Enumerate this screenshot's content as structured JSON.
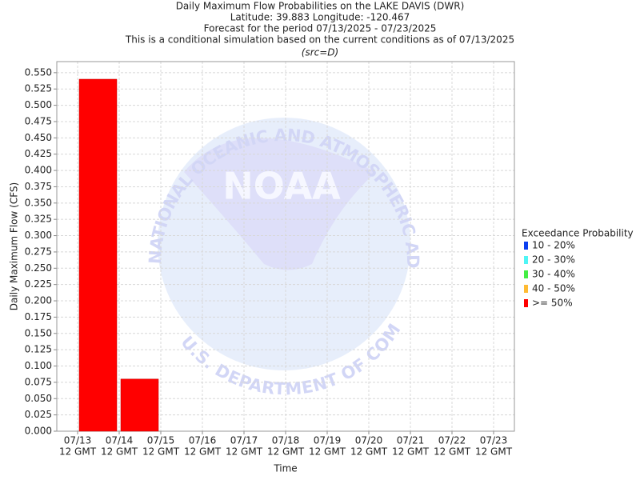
{
  "chart_data": {
    "type": "bar",
    "title": "Daily Maximum Flow Probabilities on the LAKE DAVIS (DWR)",
    "subtitle": [
      "Latitude: 39.883 Longitude: -120.467",
      "Forecast for the period 07/13/2025 - 07/23/2025",
      "This is a conditional simulation based on the current conditions as of 07/13/2025",
      "(src=D)"
    ],
    "x_label": "Time",
    "y_label": "Daily Maximum Flow (CFS)",
    "categories": [
      [
        "07/13",
        "12 GMT"
      ],
      [
        "07/14",
        "12 GMT"
      ],
      [
        "07/15",
        "12 GMT"
      ],
      [
        "07/16",
        "12 GMT"
      ],
      [
        "07/17",
        "12 GMT"
      ],
      [
        "07/18",
        "12 GMT"
      ],
      [
        "07/19",
        "12 GMT"
      ],
      [
        "07/20",
        "12 GMT"
      ],
      [
        "07/21",
        "12 GMT"
      ],
      [
        "07/22",
        "12 GMT"
      ],
      [
        "07/23",
        "12 GMT"
      ]
    ],
    "legend_title": "Exceedance Probability",
    "legend": "right",
    "series": [
      {
        "name": "10 - 20%",
        "color": "#0b3ff0",
        "values": [
          null,
          null,
          null,
          null,
          null,
          null,
          null,
          null,
          null,
          null,
          null
        ]
      },
      {
        "name": "20 - 30%",
        "color": "#4ff5f5",
        "values": [
          null,
          null,
          null,
          null,
          null,
          null,
          null,
          null,
          null,
          null,
          null
        ]
      },
      {
        "name": "30 - 40%",
        "color": "#44ee44",
        "values": [
          null,
          null,
          null,
          null,
          null,
          null,
          null,
          null,
          null,
          null,
          null
        ]
      },
      {
        "name": "40 - 50%",
        "color": "#ffbb33",
        "values": [
          null,
          null,
          null,
          null,
          null,
          null,
          null,
          null,
          null,
          null,
          null
        ]
      },
      {
        "name": ">= 50%",
        "color": "#ff0000",
        "values": [
          0.54,
          0.08,
          null,
          null,
          null,
          null,
          null,
          null,
          null,
          null,
          null
        ]
      }
    ],
    "ylim": [
      0,
      0.567
    ],
    "yticks": [
      {
        "value": 0,
        "label": "0.000"
      },
      {
        "value": 0.025,
        "label": "0.025"
      },
      {
        "value": 0.05,
        "label": "0.050"
      },
      {
        "value": 0.075,
        "label": "0.075"
      },
      {
        "value": 0.1,
        "label": "0.100"
      },
      {
        "value": 0.125,
        "label": "0.125"
      },
      {
        "value": 0.15,
        "label": "0.150"
      },
      {
        "value": 0.175,
        "label": "0.175"
      },
      {
        "value": 0.2,
        "label": "0.200"
      },
      {
        "value": 0.225,
        "label": "0.225"
      },
      {
        "value": 0.25,
        "label": "0.250"
      },
      {
        "value": 0.275,
        "label": "0.275"
      },
      {
        "value": 0.3,
        "label": "0.300"
      },
      {
        "value": 0.325,
        "label": "0.325"
      },
      {
        "value": 0.35,
        "label": "0.350"
      },
      {
        "value": 0.375,
        "label": "0.375"
      },
      {
        "value": 0.4,
        "label": "0.400"
      },
      {
        "value": 0.425,
        "label": "0.425"
      },
      {
        "value": 0.45,
        "label": "0.450"
      },
      {
        "value": 0.475,
        "label": "0.475"
      },
      {
        "value": 0.5,
        "label": "0.500"
      },
      {
        "value": 0.525,
        "label": "0.525"
      },
      {
        "value": 0.55,
        "label": "0.550"
      }
    ],
    "grid": true,
    "watermark": {
      "logo": "NOAA",
      "ring_top": "NATIONAL OCEANIC AND ATMOSPHERIC ADMINISTRATION",
      "ring_bottom": "U.S. DEPARTMENT OF COMMERCE"
    }
  }
}
